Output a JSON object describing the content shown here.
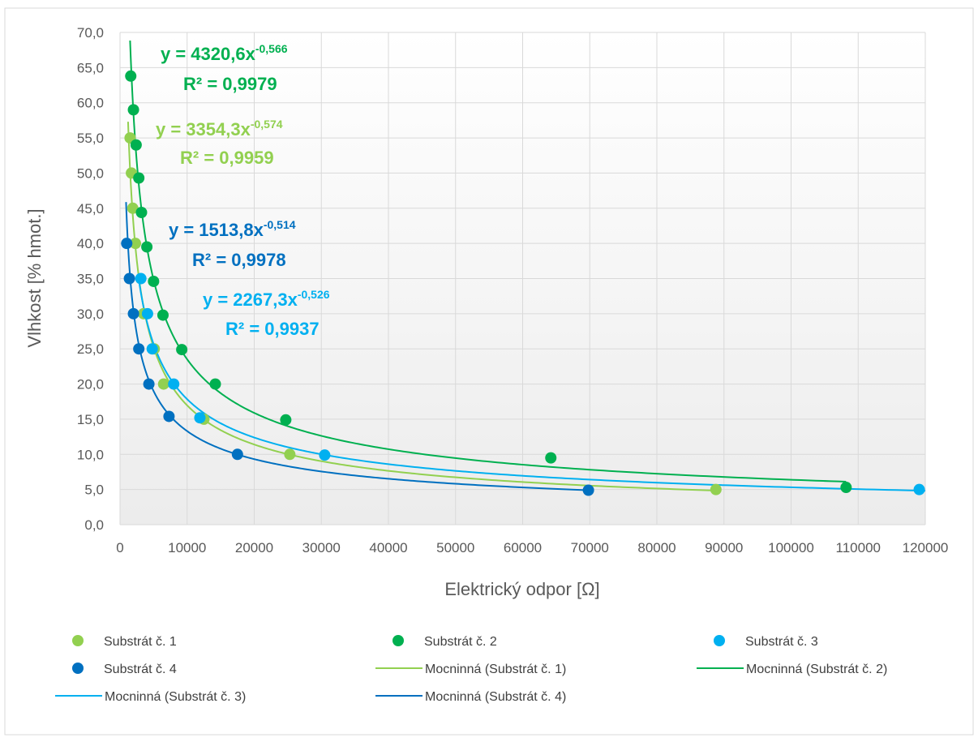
{
  "chart_data": {
    "type": "scatter",
    "xlabel": "Elektrický odpor [Ω]",
    "ylabel": "Vlhkost [% hmot.]",
    "xlim": [
      0,
      120000
    ],
    "ylim": [
      0,
      70
    ],
    "x_ticks": [
      "0",
      "10000",
      "20000",
      "30000",
      "40000",
      "50000",
      "60000",
      "70000",
      "80000",
      "90000",
      "100000",
      "110000",
      "120000"
    ],
    "y_ticks": [
      "0,0",
      "5,0",
      "10,0",
      "15,0",
      "20,0",
      "25,0",
      "30,0",
      "35,0",
      "40,0",
      "45,0",
      "50,0",
      "55,0",
      "60,0",
      "65,0",
      "70,0"
    ],
    "grid": true,
    "legend_position": "bottom",
    "series": [
      {
        "name": "Substrát č. 1",
        "color": "#92d050",
        "points": [
          [
            1500,
            55
          ],
          [
            1700,
            50
          ],
          [
            1900,
            45
          ],
          [
            2300,
            40
          ],
          [
            3500,
            30
          ],
          [
            5100,
            25
          ],
          [
            6500,
            20
          ],
          [
            12500,
            15
          ],
          [
            25300,
            10
          ],
          [
            88800,
            5
          ]
        ]
      },
      {
        "name": "Substrát č. 2",
        "color": "#00b050",
        "points": [
          [
            1600,
            63.8
          ],
          [
            2000,
            59
          ],
          [
            2400,
            54
          ],
          [
            2800,
            49.3
          ],
          [
            3200,
            44.4
          ],
          [
            4000,
            39.5
          ],
          [
            5000,
            34.6
          ],
          [
            6400,
            29.8
          ],
          [
            9200,
            24.9
          ],
          [
            14200,
            20
          ],
          [
            24700,
            14.9
          ],
          [
            64200,
            9.5
          ],
          [
            108200,
            5.3
          ]
        ]
      },
      {
        "name": "Substrát č. 3",
        "color": "#00b0f0",
        "points": [
          [
            3100,
            35
          ],
          [
            4100,
            30
          ],
          [
            4800,
            25
          ],
          [
            8000,
            20
          ],
          [
            11900,
            15.2
          ],
          [
            30500,
            9.9
          ],
          [
            119100,
            5
          ]
        ]
      },
      {
        "name": "Substrát č. 4",
        "color": "#0070c0",
        "points": [
          [
            1000,
            40
          ],
          [
            1400,
            35
          ],
          [
            2000,
            30
          ],
          [
            2800,
            25
          ],
          [
            4300,
            20
          ],
          [
            7300,
            15.4
          ],
          [
            17500,
            10
          ],
          [
            69800,
            4.9
          ]
        ]
      }
    ],
    "trendlines": [
      {
        "name": "Mocninná (Substrát č. 1)",
        "color": "#92d050",
        "a": 3354.3,
        "b": -0.574,
        "x_range": [
          1200,
          89000
        ],
        "equation": "y = 3354,3x",
        "exponent": "-0,574",
        "r2": "R² = 0,9959"
      },
      {
        "name": "Mocninná (Substrát č. 2)",
        "color": "#00b050",
        "a": 4320.6,
        "b": -0.566,
        "x_range": [
          1500,
          108200
        ],
        "equation": "y = 4320,6x",
        "exponent": "-0,566",
        "r2": "R² = 0,9979"
      },
      {
        "name": "Mocninná (Substrát č. 3)",
        "color": "#00b0f0",
        "a": 2267.3,
        "b": -0.526,
        "x_range": [
          2800,
          120000
        ],
        "equation": "y = 2267,3x",
        "exponent": "-0,526",
        "r2": "R² = 0,9937"
      },
      {
        "name": "Mocninná (Substrát č. 4)",
        "color": "#0070c0",
        "a": 1513.8,
        "b": -0.514,
        "x_range": [
          900,
          70000
        ],
        "equation": "y = 1513,8x",
        "exponent": "-0,514",
        "r2": "R² = 0,9978"
      }
    ],
    "equation_order": [
      1,
      0,
      3,
      2
    ],
    "legend_order": [
      {
        "kind": "marker",
        "series": 0
      },
      {
        "kind": "marker",
        "series": 1
      },
      {
        "kind": "marker",
        "series": 2
      },
      {
        "kind": "marker",
        "series": 3
      },
      {
        "kind": "line",
        "series": 0
      },
      {
        "kind": "line",
        "series": 1
      },
      {
        "kind": "line",
        "series": 2
      },
      {
        "kind": "line",
        "series": 3
      }
    ]
  }
}
